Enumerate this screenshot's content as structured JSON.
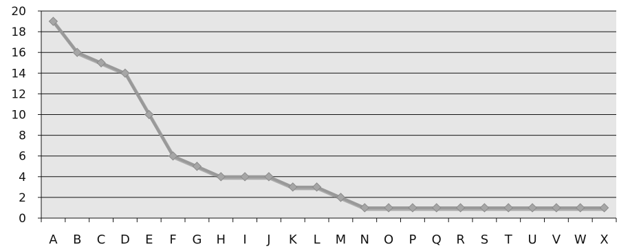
{
  "chart_data": {
    "type": "line",
    "title": "",
    "xlabel": "",
    "ylabel": "",
    "categories": [
      "A",
      "B",
      "C",
      "D",
      "E",
      "F",
      "G",
      "H",
      "I",
      "J",
      "K",
      "L",
      "M",
      "N",
      "O",
      "P",
      "Q",
      "R",
      "S",
      "T",
      "U",
      "V",
      "W",
      "X"
    ],
    "series": [
      {
        "values": [
          19,
          16,
          15,
          14,
          10,
          6,
          5,
          4,
          4,
          4,
          3,
          3,
          2,
          1,
          1,
          1,
          1,
          1,
          1,
          1,
          1,
          1,
          1,
          1
        ],
        "color": "#999999",
        "marker": "diamond"
      }
    ],
    "ylim": [
      0,
      20
    ],
    "y_ticks": [
      0,
      2,
      4,
      6,
      8,
      10,
      12,
      14,
      16,
      18,
      20
    ],
    "grid": true,
    "legend": "none",
    "plot_background": "#e6e6e6",
    "gridline_color": "#111111"
  }
}
